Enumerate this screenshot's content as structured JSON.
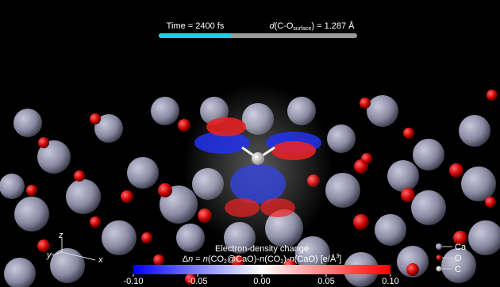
{
  "header": {
    "time": "Time = 2400 fs",
    "distance": [
      "d",
      "(C-O",
      "surface",
      ") = 1.287 Å"
    ]
  },
  "colorbar": {
    "title": "Electron-density change",
    "formula": [
      "Δ",
      "n",
      " = ",
      "n",
      "(CO",
      "2",
      "@CaO)-",
      "n",
      "(CO",
      "2",
      ")-",
      "n",
      "(CaO)  [e/Å",
      "3",
      "]"
    ],
    "range": [
      -0.1,
      0.1
    ],
    "ticks": [
      {
        "value": -0.1,
        "label": "-0.10"
      },
      {
        "value": -0.05,
        "label": "-0.05"
      },
      {
        "value": 0,
        "label": "0.00"
      },
      {
        "value": 0.05,
        "label": "0.05"
      },
      {
        "value": 0.1,
        "label": "0.10"
      }
    ]
  },
  "legend": [
    "Ca",
    "O",
    "C"
  ],
  "axes": [
    "x",
    "y",
    "z"
  ]
}
